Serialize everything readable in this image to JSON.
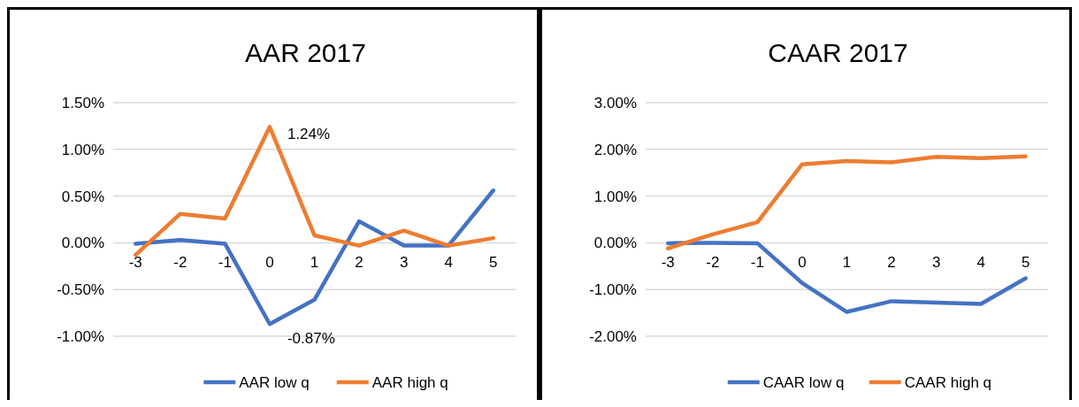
{
  "chart_data": [
    {
      "type": "line",
      "title": "AAR 2017",
      "categories": [
        "-3",
        "-2",
        "-1",
        "0",
        "1",
        "2",
        "3",
        "4",
        "5"
      ],
      "series": [
        {
          "name": "AAR low q",
          "color": "#4472c4",
          "values": [
            -0.01,
            0.03,
            -0.01,
            -0.87,
            -0.61,
            0.23,
            -0.03,
            -0.03,
            0.56
          ],
          "value_labels": [
            null,
            null,
            null,
            "-0.87%",
            null,
            null,
            null,
            null,
            null
          ]
        },
        {
          "name": "AAR high q",
          "color": "#ed7d31",
          "values": [
            -0.13,
            0.31,
            0.26,
            1.24,
            0.08,
            -0.03,
            0.13,
            -0.03,
            0.05
          ],
          "value_labels": [
            null,
            null,
            null,
            "1.24%",
            null,
            null,
            null,
            null,
            null
          ]
        }
      ],
      "ylim": [
        -1,
        1.5
      ],
      "yticks": [
        {
          "value": -1,
          "label": "-1.00%"
        },
        {
          "value": -0.5,
          "label": "-0.50%"
        },
        {
          "value": 0,
          "label": "0.00%"
        },
        {
          "value": 0.5,
          "label": "0.50%"
        },
        {
          "value": 1,
          "label": "1.00%"
        },
        {
          "value": 1.5,
          "label": "1.50%"
        }
      ],
      "grid": "y",
      "legend": "bottom",
      "marker": "none",
      "line_style": "solid"
    },
    {
      "type": "line",
      "title": "CAAR 2017",
      "categories": [
        "-3",
        "-2",
        "-1",
        "0",
        "1",
        "2",
        "3",
        "4",
        "5"
      ],
      "series": [
        {
          "name": "CAAR low q",
          "color": "#4472c4",
          "values": [
            -0.01,
            0.0,
            -0.01,
            -0.86,
            -1.48,
            -1.25,
            -1.28,
            -1.31,
            -0.76
          ]
        },
        {
          "name": "CAAR high q",
          "color": "#ed7d31",
          "values": [
            -0.12,
            0.18,
            0.44,
            1.68,
            1.75,
            1.72,
            1.84,
            1.81,
            1.85
          ]
        }
      ],
      "ylim": [
        -2,
        3
      ],
      "yticks": [
        {
          "value": -2,
          "label": "-2.00%"
        },
        {
          "value": -1,
          "label": "-1.00%"
        },
        {
          "value": 0,
          "label": "0.00%"
        },
        {
          "value": 1,
          "label": "1.00%"
        },
        {
          "value": 2,
          "label": "2.00%"
        },
        {
          "value": 3,
          "label": "3.00%"
        }
      ],
      "grid": "y",
      "legend": "bottom",
      "marker": "none",
      "line_style": "solid"
    }
  ]
}
